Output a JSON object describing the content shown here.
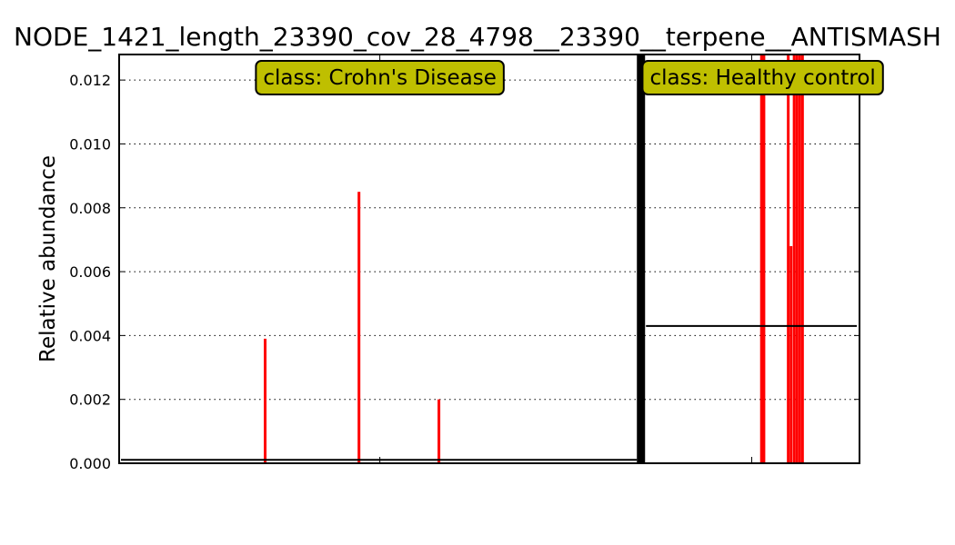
{
  "chart_data": {
    "type": "bar",
    "title": "NODE_1421_length_23390_cov_28_4798__23390__terpene__ANTISMASH",
    "xlabel": "",
    "ylabel": "Relative abundance",
    "ylim": [
      0,
      0.0128
    ],
    "yticks": [
      0,
      0.002,
      0.004,
      0.006,
      0.008,
      0.01,
      0.012
    ],
    "ytick_labels": [
      "0.000",
      "0.002",
      "0.004",
      "0.006",
      "0.008",
      "0.010",
      "0.012"
    ],
    "grid": "horizontal dotted",
    "colors": {
      "bars": "#ff0000",
      "divider": "#000000",
      "mean_line": "#000000",
      "class_box": "#bfbf00"
    },
    "groups": [
      {
        "label": "class: Crohn's Disease",
        "x_range": [
          0,
          150
        ],
        "mean": 5e-05,
        "samples": [
          {
            "x": 42,
            "value": 0.0039
          },
          {
            "x": 69,
            "value": 0.0085
          },
          {
            "x": 92,
            "value": 0.002
          }
        ]
      },
      {
        "label": "class: Healthy control",
        "x_range": [
          150,
          213
        ],
        "mean": 0.0043,
        "samples": [
          {
            "x": 184.8,
            "value": 0.0128
          },
          {
            "x": 185.5,
            "value": 0.0128
          },
          {
            "x": 192.5,
            "value": 0.0128
          },
          {
            "x": 193.3,
            "value": 0.0068
          },
          {
            "x": 194.2,
            "value": 0.0128
          },
          {
            "x": 195.0,
            "value": 0.0128
          },
          {
            "x": 195.8,
            "value": 0.0128
          },
          {
            "x": 196.6,
            "value": 0.0128
          }
        ]
      }
    ],
    "x_total": 213
  }
}
